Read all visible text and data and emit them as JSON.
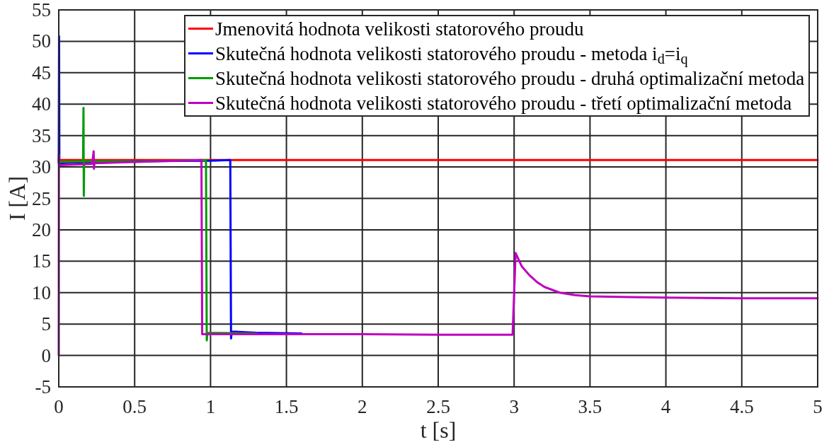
{
  "chart_data": {
    "type": "line",
    "xlabel": "t [s]",
    "ylabel": "I [A]",
    "xlim": [
      0,
      5
    ],
    "xticks": [
      0,
      0.5,
      1,
      1.5,
      2,
      2.5,
      3,
      3.5,
      4,
      4.5,
      5
    ],
    "ylim": [
      -5,
      55
    ],
    "yticks": [
      -5,
      0,
      5,
      10,
      15,
      20,
      25,
      30,
      35,
      40,
      45,
      50,
      55
    ],
    "grid": true,
    "legend": "top right",
    "series": [
      {
        "name": "Jmenovitá hodnota velikosti statorového proudu",
        "color": "#ff0000",
        "x": [
          0,
          5
        ],
        "values": [
          31.1,
          31.1
        ]
      },
      {
        "name": "Skutečná hodnota velikosti statorového proudu - metoda i$_{d}$=i$_{q}$",
        "color": "#0000ff",
        "x": [
          0,
          0.002,
          0.004,
          0.1,
          0.5,
          1.0,
          1.13,
          1.135,
          1.14,
          1.3,
          1.6
        ],
        "values": [
          30.6,
          50.8,
          30.6,
          30.7,
          30.9,
          31.0,
          31.1,
          2.7,
          3.8,
          3.6,
          3.5
        ]
      },
      {
        "name": "Skutečná hodnota velikosti statorového proudu - druhá optimalizační metoda",
        "color": "#009b00",
        "x": [
          0,
          0.16,
          0.163,
          0.165,
          0.167,
          0.5,
          0.97,
          0.975,
          0.98,
          1.3
        ],
        "values": [
          30.8,
          30.9,
          39.4,
          25.4,
          30.9,
          30.9,
          31.1,
          2.4,
          3.6,
          3.5
        ]
      },
      {
        "name": "Skutečná hodnota velikosti statorového proudu - třetí optimalizační metoda",
        "color": "#bf00bf",
        "x": [
          0,
          0.001,
          0.003,
          0.22,
          0.23,
          0.232,
          0.235,
          0.5,
          0.94,
          0.945,
          1.3,
          2.0,
          2.5,
          2.99,
          3.01,
          3.05,
          3.1,
          3.15,
          3.2,
          3.3,
          3.4,
          3.5,
          3.75,
          4.0,
          4.5,
          5
        ],
        "values": [
          0,
          32.0,
          30.3,
          30.5,
          32.5,
          29.7,
          30.6,
          30.8,
          31.1,
          3.4,
          3.4,
          3.4,
          3.3,
          3.3,
          16.3,
          14.2,
          12.8,
          11.7,
          10.9,
          10.0,
          9.6,
          9.4,
          9.3,
          9.2,
          9.1,
          9.1
        ]
      }
    ]
  }
}
